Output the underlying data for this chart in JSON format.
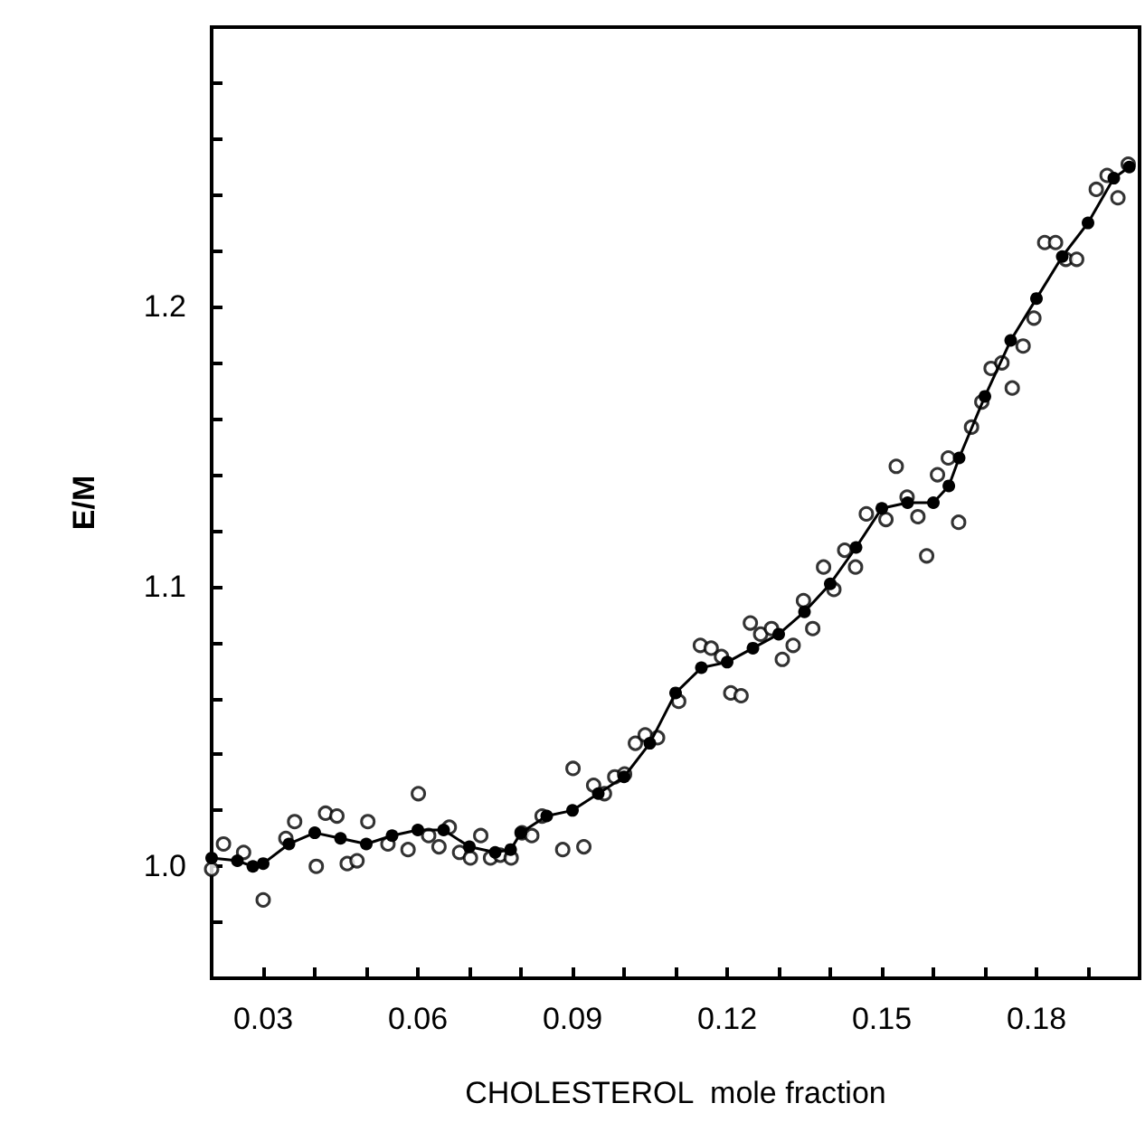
{
  "chart_data": {
    "type": "scatter",
    "xlabel": "CHOLESTEROL  mole fraction",
    "ylabel": "E/M",
    "xlim": [
      0.02,
      0.2
    ],
    "ylim": [
      0.96,
      1.3
    ],
    "xticks": [
      0.03,
      {
        "value": 0.04,
        "label": null
      },
      {
        "value": 0.05,
        "label": null
      },
      0.06,
      {
        "value": 0.07,
        "label": null
      },
      {
        "value": 0.08,
        "label": null
      },
      0.09,
      {
        "value": 0.1,
        "label": null
      },
      {
        "value": 0.11,
        "label": null
      },
      0.12,
      {
        "value": 0.13,
        "label": null
      },
      {
        "value": 0.14,
        "label": null
      },
      0.15,
      {
        "value": 0.16,
        "label": null
      },
      {
        "value": 0.17,
        "label": null
      },
      0.18,
      {
        "value": 0.19,
        "label": null
      }
    ],
    "yticks": [
      {
        "value": 0.98,
        "label": null
      },
      {
        "value": 1.0,
        "label": "1.0"
      },
      {
        "value": 1.02,
        "label": null
      },
      {
        "value": 1.04,
        "label": null
      },
      {
        "value": 1.06,
        "label": null
      },
      {
        "value": 1.08,
        "label": null
      },
      1.1,
      {
        "value": 1.12,
        "label": null
      },
      {
        "value": 1.14,
        "label": null
      },
      {
        "value": 1.16,
        "label": null
      },
      {
        "value": 1.18,
        "label": null
      },
      1.2,
      {
        "value": 1.22,
        "label": null
      },
      {
        "value": 1.24,
        "label": null
      },
      {
        "value": 1.26,
        "label": null
      },
      {
        "value": 1.28,
        "label": null
      }
    ],
    "grid": false,
    "marker": "circle",
    "series": [
      {
        "color": "#000000",
        "x": [
          0.02,
          0.0223,
          0.0262,
          0.03,
          0.0344,
          0.0361,
          0.0403,
          0.0421,
          0.0443,
          0.0463,
          0.0482,
          0.0503,
          0.0542,
          0.0581,
          0.0601,
          0.0621,
          0.0641,
          0.0661,
          0.0681,
          0.0702,
          0.0722,
          0.0741,
          0.076,
          0.0781,
          0.0802,
          0.0821,
          0.0841,
          0.0881,
          0.0901,
          0.0922,
          0.0941,
          0.0962,
          0.0982,
          0.1001,
          0.1022,
          0.1041,
          0.1065,
          0.1106,
          0.1148,
          0.1169,
          0.1189,
          0.1207,
          0.1227,
          0.1245,
          0.1265,
          0.1286,
          0.1307,
          0.1328,
          0.1348,
          0.1366,
          0.1387,
          0.1407,
          0.1428,
          0.1449,
          0.147,
          0.1508,
          0.1528,
          0.1549,
          0.157,
          0.1587,
          0.1608,
          0.1629,
          0.1649,
          0.1674,
          0.1694,
          0.1712,
          0.1733,
          0.1753,
          0.1774,
          0.1795,
          0.1816,
          0.1837,
          0.1857,
          0.1878,
          0.1916,
          0.1937,
          0.1958,
          0.1978
        ],
        "values": [
          0.999,
          1.008,
          1.005,
          0.988,
          1.01,
          1.016,
          1.0,
          1.019,
          1.018,
          1.001,
          1.002,
          1.016,
          1.008,
          1.006,
          1.026,
          1.011,
          1.007,
          1.014,
          1.005,
          1.003,
          1.011,
          1.003,
          1.004,
          1.003,
          1.012,
          1.011,
          1.018,
          1.006,
          1.035,
          1.007,
          1.029,
          1.026,
          1.032,
          1.033,
          1.044,
          1.047,
          1.046,
          1.059,
          1.079,
          1.078,
          1.075,
          1.062,
          1.061,
          1.087,
          1.083,
          1.085,
          1.074,
          1.079,
          1.095,
          1.085,
          1.107,
          1.099,
          1.113,
          1.107,
          1.126,
          1.124,
          1.143,
          1.132,
          1.125,
          1.111,
          1.14,
          1.146,
          1.123,
          1.157,
          1.166,
          1.178,
          1.18,
          1.171,
          1.186,
          1.196,
          1.223,
          1.223,
          1.217,
          1.217,
          1.242,
          1.247,
          1.239,
          1.251
        ]
      },
      {
        "type": "line",
        "color": "#000000",
        "x": [
          0.02,
          0.025,
          0.028,
          0.03,
          0.035,
          0.04,
          0.045,
          0.05,
          0.055,
          0.06,
          0.065,
          0.07,
          0.075,
          0.078,
          0.08,
          0.085,
          0.09,
          0.095,
          0.1,
          0.105,
          0.11,
          0.115,
          0.12,
          0.125,
          0.13,
          0.135,
          0.14,
          0.145,
          0.15,
          0.155,
          0.16,
          0.163,
          0.165,
          0.17,
          0.175,
          0.18,
          0.185,
          0.19,
          0.195,
          0.198
        ],
        "values": [
          1.003,
          1.002,
          1.0,
          1.001,
          1.008,
          1.012,
          1.01,
          1.008,
          1.011,
          1.013,
          1.013,
          1.007,
          1.005,
          1.006,
          1.012,
          1.018,
          1.02,
          1.026,
          1.032,
          1.044,
          1.062,
          1.071,
          1.073,
          1.078,
          1.083,
          1.091,
          1.101,
          1.114,
          1.128,
          1.13,
          1.13,
          1.136,
          1.146,
          1.168,
          1.188,
          1.203,
          1.218,
          1.23,
          1.246,
          1.25
        ]
      }
    ]
  }
}
